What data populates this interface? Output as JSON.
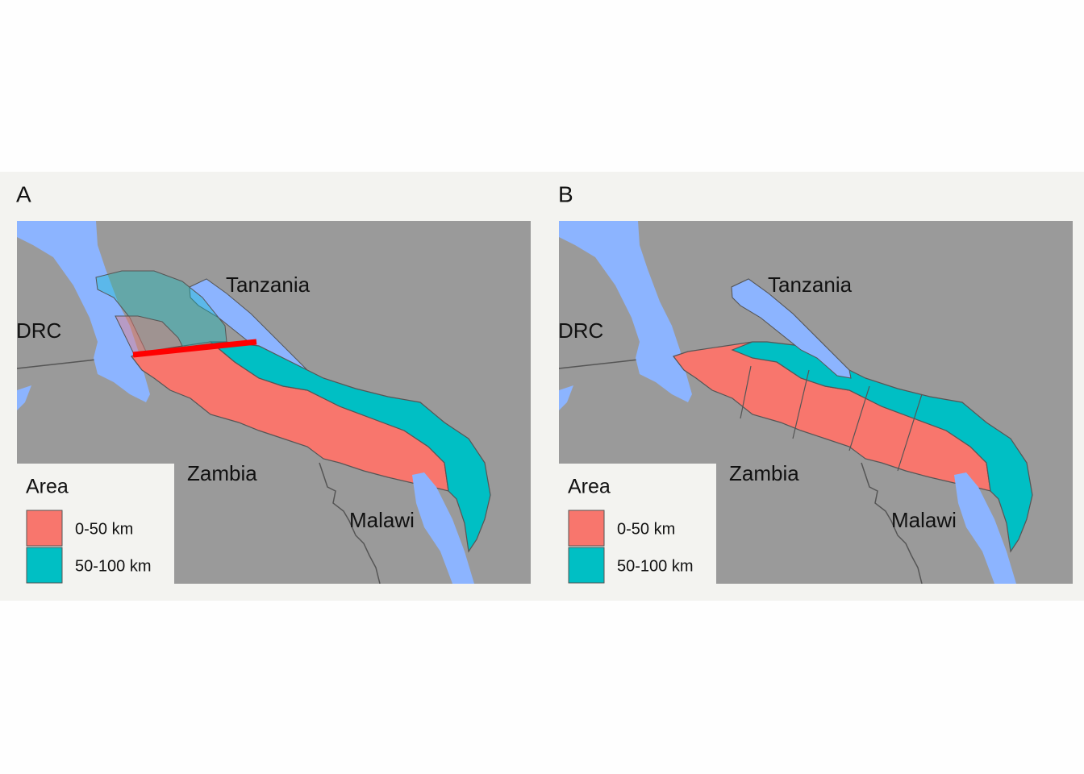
{
  "panels": [
    {
      "label": "A",
      "countries": [
        "Tanzania",
        "DRC",
        "Zambia",
        "Malawi"
      ],
      "legend": {
        "title": "Area",
        "items": [
          {
            "label": "0-50 km",
            "color": "#f8766d"
          },
          {
            "label": "50-100 km",
            "color": "#00bfc4"
          }
        ]
      }
    },
    {
      "label": "B",
      "countries": [
        "Tanzania",
        "DRC",
        "Zambia",
        "Malawi"
      ],
      "legend": {
        "title": "Area",
        "items": [
          {
            "label": "0-50 km",
            "color": "#f8766d"
          },
          {
            "label": "50-100 km",
            "color": "#00bfc4"
          }
        ]
      }
    }
  ]
}
